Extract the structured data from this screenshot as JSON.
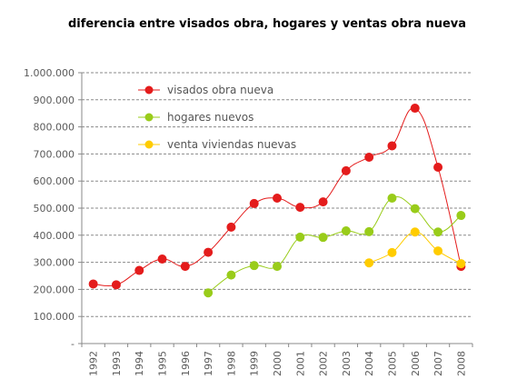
{
  "chart_data": {
    "type": "line",
    "title": "diferencia entre visados obra, hogares y ventas obra nueva",
    "xlabel": "",
    "ylabel": "",
    "categories": [
      "1992",
      "1993",
      "1994",
      "1995",
      "1996",
      "1997",
      "1998",
      "1999",
      "2000",
      "2001",
      "2002",
      "2003",
      "2004",
      "2005",
      "2006",
      "2007",
      "2008"
    ],
    "ylim": [
      0,
      1000000
    ],
    "yticks": [
      0,
      100000,
      200000,
      300000,
      400000,
      500000,
      600000,
      700000,
      800000,
      900000,
      1000000
    ],
    "ytick_labels": [
      "-",
      "100.000",
      "200.000",
      "300.000",
      "400.000",
      "500.000",
      "600.000",
      "700.000",
      "800.000",
      "900.000",
      "1.000.000"
    ],
    "grid": "horizontal dashed",
    "legend_position": "top-left",
    "series": [
      {
        "name": "visados obra nueva",
        "color": "#e41c1c",
        "values": [
          220000,
          217000,
          270000,
          312000,
          285000,
          337000,
          430000,
          517000,
          537000,
          503000,
          523000,
          638000,
          688000,
          730000,
          869000,
          651000,
          285000
        ]
      },
      {
        "name": "hogares nuevos",
        "color": "#99cc1a",
        "values": [
          null,
          null,
          null,
          null,
          null,
          187000,
          253000,
          288000,
          285000,
          393000,
          392000,
          416000,
          413000,
          537000,
          498000,
          412000,
          473000
        ]
      },
      {
        "name": "venta viviendas nuevas",
        "color": "#ffcc00",
        "values": [
          null,
          null,
          null,
          null,
          null,
          null,
          null,
          null,
          null,
          null,
          null,
          null,
          298000,
          336000,
          412000,
          342000,
          295000
        ]
      }
    ]
  }
}
